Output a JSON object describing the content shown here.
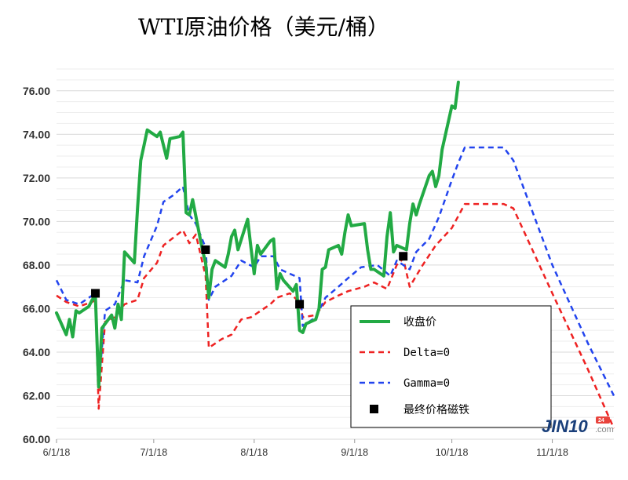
{
  "chart_data": {
    "type": "line",
    "title": "WTI原油价格（美元/桶）",
    "ylim": [
      60,
      77
    ],
    "yticks": [
      60,
      62,
      64,
      66,
      68,
      70,
      72,
      74,
      76
    ],
    "ytick_labels": [
      "60.00",
      "62.00",
      "64.00",
      "66.00",
      "68.00",
      "70.00",
      "72.00",
      "74.00",
      "76.00"
    ],
    "xlim": [
      "2018-06-01",
      "2018-11-20"
    ],
    "xticks": [
      "2018-06-01",
      "2018-07-01",
      "2018-08-01",
      "2018-09-01",
      "2018-10-01",
      "2018-11-01"
    ],
    "xtick_labels": [
      "6/1/18",
      "7/1/18",
      "8/1/18",
      "9/1/18",
      "10/1/18",
      "11/1/18"
    ],
    "grid": true,
    "legend_position": "bottom-right",
    "series": [
      {
        "name": "收盘价",
        "color": "#22aa44",
        "style": "solid",
        "points": [
          [
            "2018-06-01",
            65.8
          ],
          [
            "2018-06-04",
            64.8
          ],
          [
            "2018-06-05",
            65.5
          ],
          [
            "2018-06-06",
            64.7
          ],
          [
            "2018-06-07",
            65.9
          ],
          [
            "2018-06-08",
            65.8
          ],
          [
            "2018-06-11",
            66.1
          ],
          [
            "2018-06-12",
            66.4
          ],
          [
            "2018-06-13",
            66.6
          ],
          [
            "2018-06-14",
            62.4
          ],
          [
            "2018-06-15",
            65.1
          ],
          [
            "2018-06-18",
            65.7
          ],
          [
            "2018-06-19",
            65.1
          ],
          [
            "2018-06-20",
            66.2
          ],
          [
            "2018-06-21",
            65.5
          ],
          [
            "2018-06-22",
            68.6
          ],
          [
            "2018-06-25",
            68.1
          ],
          [
            "2018-06-26",
            70.6
          ],
          [
            "2018-06-27",
            72.8
          ],
          [
            "2018-06-28",
            73.5
          ],
          [
            "2018-06-29",
            74.2
          ],
          [
            "2018-07-02",
            73.9
          ],
          [
            "2018-07-03",
            74.1
          ],
          [
            "2018-07-05",
            72.9
          ],
          [
            "2018-07-06",
            73.8
          ],
          [
            "2018-07-09",
            73.9
          ],
          [
            "2018-07-10",
            74.1
          ],
          [
            "2018-07-11",
            70.4
          ],
          [
            "2018-07-12",
            70.3
          ],
          [
            "2018-07-13",
            71.0
          ],
          [
            "2018-07-16",
            68.7
          ],
          [
            "2018-07-17",
            68.1
          ],
          [
            "2018-07-18",
            66.5
          ],
          [
            "2018-07-19",
            67.8
          ],
          [
            "2018-07-20",
            68.2
          ],
          [
            "2018-07-23",
            67.9
          ],
          [
            "2018-07-24",
            68.5
          ],
          [
            "2018-07-25",
            69.3
          ],
          [
            "2018-07-26",
            69.6
          ],
          [
            "2018-07-27",
            68.7
          ],
          [
            "2018-07-30",
            70.1
          ],
          [
            "2018-07-31",
            68.8
          ],
          [
            "2018-08-01",
            67.6
          ],
          [
            "2018-08-02",
            68.9
          ],
          [
            "2018-08-03",
            68.5
          ],
          [
            "2018-08-06",
            69.1
          ],
          [
            "2018-08-07",
            69.2
          ],
          [
            "2018-08-08",
            66.9
          ],
          [
            "2018-08-09",
            67.6
          ],
          [
            "2018-08-10",
            67.3
          ],
          [
            "2018-08-13",
            66.8
          ],
          [
            "2018-08-14",
            67.1
          ],
          [
            "2018-08-15",
            65.0
          ],
          [
            "2018-08-16",
            64.9
          ],
          [
            "2018-08-17",
            65.3
          ],
          [
            "2018-08-20",
            65.5
          ],
          [
            "2018-08-21",
            66.0
          ],
          [
            "2018-08-22",
            67.8
          ],
          [
            "2018-08-23",
            67.9
          ],
          [
            "2018-08-24",
            68.7
          ],
          [
            "2018-08-27",
            68.9
          ],
          [
            "2018-08-28",
            68.5
          ],
          [
            "2018-08-29",
            69.5
          ],
          [
            "2018-08-30",
            70.3
          ],
          [
            "2018-08-31",
            69.8
          ],
          [
            "2018-09-04",
            69.9
          ],
          [
            "2018-09-05",
            68.7
          ],
          [
            "2018-09-06",
            67.8
          ],
          [
            "2018-09-07",
            67.8
          ],
          [
            "2018-09-10",
            67.5
          ],
          [
            "2018-09-11",
            69.3
          ],
          [
            "2018-09-12",
            70.4
          ],
          [
            "2018-09-13",
            68.6
          ],
          [
            "2018-09-14",
            68.9
          ],
          [
            "2018-09-17",
            68.7
          ],
          [
            "2018-09-18",
            69.9
          ],
          [
            "2018-09-19",
            70.8
          ],
          [
            "2018-09-20",
            70.3
          ],
          [
            "2018-09-21",
            70.8
          ],
          [
            "2018-09-24",
            72.1
          ],
          [
            "2018-09-25",
            72.3
          ],
          [
            "2018-09-26",
            71.6
          ],
          [
            "2018-09-27",
            72.1
          ],
          [
            "2018-09-28",
            73.3
          ],
          [
            "2018-10-01",
            75.3
          ],
          [
            "2018-10-02",
            75.2
          ],
          [
            "2018-10-03",
            76.4
          ]
        ]
      },
      {
        "name": "Delta=0",
        "color": "#ee2222",
        "style": "dashed",
        "points": [
          [
            "2018-06-01",
            66.6
          ],
          [
            "2018-06-04",
            66.3
          ],
          [
            "2018-06-08",
            66.1
          ],
          [
            "2018-06-12",
            66.3
          ],
          [
            "2018-06-13",
            66.4
          ],
          [
            "2018-06-14",
            61.4
          ],
          [
            "2018-06-16",
            65.4
          ],
          [
            "2018-06-19",
            65.6
          ],
          [
            "2018-06-22",
            66.2
          ],
          [
            "2018-06-26",
            66.4
          ],
          [
            "2018-06-28",
            67.4
          ],
          [
            "2018-07-02",
            68.1
          ],
          [
            "2018-07-04",
            68.9
          ],
          [
            "2018-07-10",
            69.6
          ],
          [
            "2018-07-12",
            69.0
          ],
          [
            "2018-07-14",
            69.4
          ],
          [
            "2018-07-17",
            67.5
          ],
          [
            "2018-07-18",
            64.2
          ],
          [
            "2018-07-22",
            64.6
          ],
          [
            "2018-07-25",
            64.8
          ],
          [
            "2018-07-28",
            65.5
          ],
          [
            "2018-07-31",
            65.6
          ],
          [
            "2018-08-03",
            65.9
          ],
          [
            "2018-08-06",
            66.2
          ],
          [
            "2018-08-08",
            66.5
          ],
          [
            "2018-08-12",
            66.7
          ],
          [
            "2018-08-15",
            66.3
          ],
          [
            "2018-08-16",
            65.6
          ],
          [
            "2018-08-20",
            65.7
          ],
          [
            "2018-08-23",
            66.3
          ],
          [
            "2018-08-27",
            66.6
          ],
          [
            "2018-08-30",
            66.8
          ],
          [
            "2018-09-04",
            67.0
          ],
          [
            "2018-09-07",
            67.2
          ],
          [
            "2018-09-11",
            66.9
          ],
          [
            "2018-09-14",
            68.0
          ],
          [
            "2018-09-16",
            68.3
          ],
          [
            "2018-09-18",
            67.0
          ],
          [
            "2018-09-22",
            68.0
          ],
          [
            "2018-09-26",
            68.9
          ],
          [
            "2018-10-01",
            69.7
          ],
          [
            "2018-10-05",
            70.8
          ],
          [
            "2018-10-17",
            70.8
          ],
          [
            "2018-10-20",
            70.6
          ],
          [
            "2018-11-01",
            66.7
          ],
          [
            "2018-11-12",
            63.2
          ],
          [
            "2018-11-20",
            60.5
          ]
        ]
      },
      {
        "name": "Gamma=0",
        "color": "#2244ee",
        "style": "dashed",
        "points": [
          [
            "2018-06-01",
            67.3
          ],
          [
            "2018-06-04",
            66.4
          ],
          [
            "2018-06-08",
            66.2
          ],
          [
            "2018-06-12",
            66.6
          ],
          [
            "2018-06-13",
            66.7
          ],
          [
            "2018-06-14",
            62.4
          ],
          [
            "2018-06-16",
            65.9
          ],
          [
            "2018-06-19",
            66.2
          ],
          [
            "2018-06-22",
            67.3
          ],
          [
            "2018-06-26",
            67.2
          ],
          [
            "2018-06-28",
            68.4
          ],
          [
            "2018-07-02",
            69.8
          ],
          [
            "2018-07-04",
            70.9
          ],
          [
            "2018-07-07",
            71.2
          ],
          [
            "2018-07-10",
            71.6
          ],
          [
            "2018-07-12",
            70.3
          ],
          [
            "2018-07-14",
            69.9
          ],
          [
            "2018-07-17",
            68.8
          ],
          [
            "2018-07-18",
            66.4
          ],
          [
            "2018-07-20",
            67.0
          ],
          [
            "2018-07-25",
            67.5
          ],
          [
            "2018-07-28",
            68.2
          ],
          [
            "2018-08-01",
            67.9
          ],
          [
            "2018-08-03",
            68.4
          ],
          [
            "2018-08-07",
            68.4
          ],
          [
            "2018-08-09",
            67.8
          ],
          [
            "2018-08-12",
            67.6
          ],
          [
            "2018-08-15",
            67.4
          ],
          [
            "2018-08-16",
            65.2
          ],
          [
            "2018-08-20",
            65.6
          ],
          [
            "2018-08-23",
            66.5
          ],
          [
            "2018-08-27",
            67.0
          ],
          [
            "2018-08-30",
            67.4
          ],
          [
            "2018-09-03",
            67.9
          ],
          [
            "2018-09-08",
            68.0
          ],
          [
            "2018-09-12",
            67.5
          ],
          [
            "2018-09-14",
            68.2
          ],
          [
            "2018-09-18",
            67.8
          ],
          [
            "2018-09-20",
            68.6
          ],
          [
            "2018-09-24",
            69.2
          ],
          [
            "2018-09-27",
            70.2
          ],
          [
            "2018-10-01",
            71.9
          ],
          [
            "2018-10-03",
            72.7
          ],
          [
            "2018-10-05",
            73.4
          ],
          [
            "2018-10-17",
            73.4
          ],
          [
            "2018-10-20",
            72.8
          ],
          [
            "2018-11-01",
            68.0
          ],
          [
            "2018-11-12",
            64.4
          ],
          [
            "2018-11-20",
            62.0
          ]
        ]
      },
      {
        "name": "最终价格磁铁",
        "color": "#000000",
        "style": "marker",
        "points": [
          [
            "2018-06-13",
            66.7
          ],
          [
            "2018-07-17",
            68.7
          ],
          [
            "2018-08-15",
            66.2
          ],
          [
            "2018-09-16",
            68.4
          ]
        ]
      }
    ]
  },
  "watermark": {
    "text": "JIN10",
    "suffix": ".com",
    "badge": "24"
  }
}
